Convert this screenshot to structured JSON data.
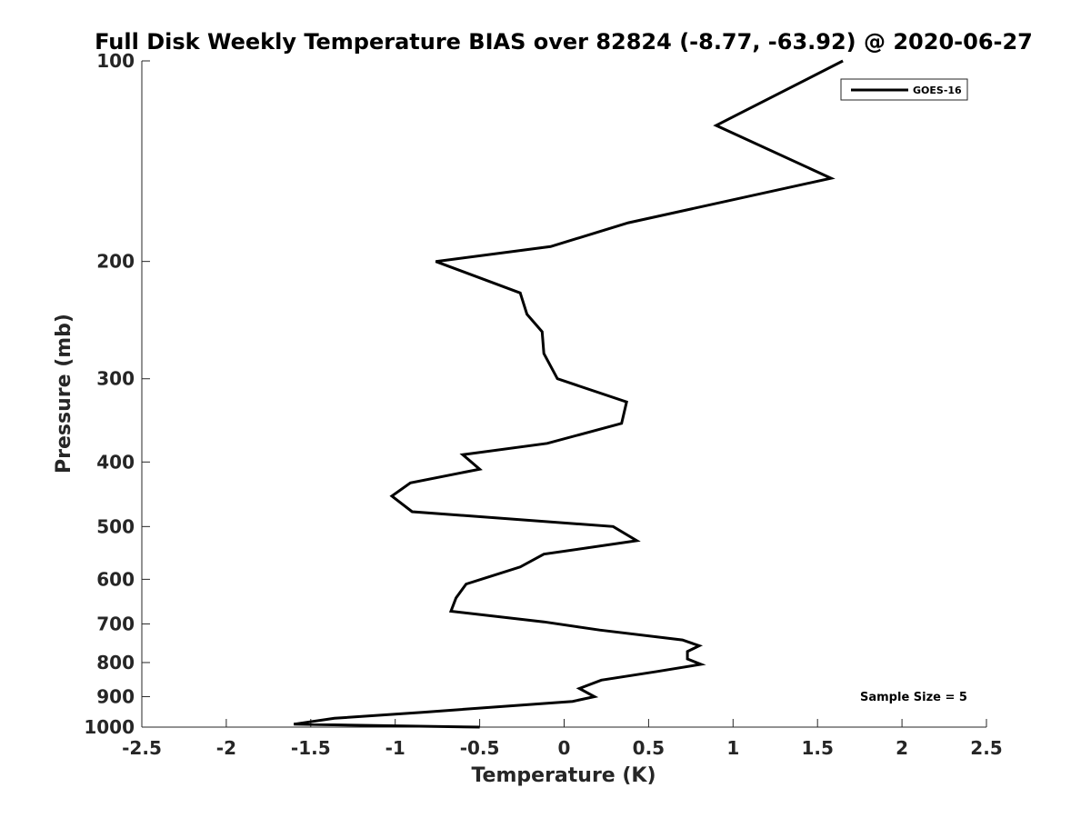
{
  "chart_data": {
    "type": "line",
    "title": "Full Disk Weekly Temperature BIAS over 82824 (-8.77, -63.92) @ 2020-06-27",
    "xlabel": "Temperature (K)",
    "ylabel": "Pressure (mb)",
    "xlim": [
      -2.5,
      2.5
    ],
    "ylim": [
      100,
      1000
    ],
    "y_scale": "log",
    "y_reversed": true,
    "xticks": [
      -2.5,
      -2,
      -1.5,
      -1,
      -0.5,
      0,
      0.5,
      1,
      1.5,
      2,
      2.5
    ],
    "xtick_labels": [
      "-2.5",
      "-2",
      "-1.5",
      "-1",
      "-0.5",
      "0",
      "0.5",
      "1",
      "1.5",
      "2",
      "2.5"
    ],
    "yticks": [
      100,
      200,
      300,
      400,
      500,
      600,
      700,
      800,
      900,
      1000
    ],
    "ytick_labels": [
      "100",
      "200",
      "300",
      "400",
      "500",
      "600",
      "700",
      "800",
      "900",
      "1000"
    ],
    "grid": false,
    "legend_position": "top-right",
    "annotation": "Sample Size = 5",
    "series": [
      {
        "name": "GOES-16",
        "color": "#000000",
        "points": [
          [
            1.65,
            100
          ],
          [
            0.9,
            125
          ],
          [
            1.58,
            150
          ],
          [
            0.38,
            175
          ],
          [
            -0.08,
            190
          ],
          [
            -0.76,
            200
          ],
          [
            -0.26,
            223
          ],
          [
            -0.22,
            240
          ],
          [
            -0.13,
            255
          ],
          [
            -0.12,
            275
          ],
          [
            -0.04,
            300
          ],
          [
            0.37,
            325
          ],
          [
            0.34,
            350
          ],
          [
            -0.1,
            375
          ],
          [
            -0.6,
            390
          ],
          [
            -0.5,
            410
          ],
          [
            -0.91,
            430
          ],
          [
            -1.02,
            450
          ],
          [
            -0.9,
            475
          ],
          [
            0.29,
            500
          ],
          [
            0.43,
            525
          ],
          [
            -0.12,
            550
          ],
          [
            -0.26,
            575
          ],
          [
            -0.58,
            610
          ],
          [
            -0.64,
            640
          ],
          [
            -0.67,
            670
          ],
          [
            -0.12,
            695
          ],
          [
            0.21,
            715
          ],
          [
            0.7,
            740
          ],
          [
            0.8,
            755
          ],
          [
            0.73,
            770
          ],
          [
            0.73,
            790
          ],
          [
            0.81,
            805
          ],
          [
            0.55,
            825
          ],
          [
            0.22,
            850
          ],
          [
            0.09,
            875
          ],
          [
            0.18,
            900
          ],
          [
            0.05,
            915
          ],
          [
            -0.84,
            950
          ],
          [
            -1.36,
            970
          ],
          [
            -1.6,
            990
          ],
          [
            -0.5,
            1000
          ]
        ]
      }
    ]
  }
}
